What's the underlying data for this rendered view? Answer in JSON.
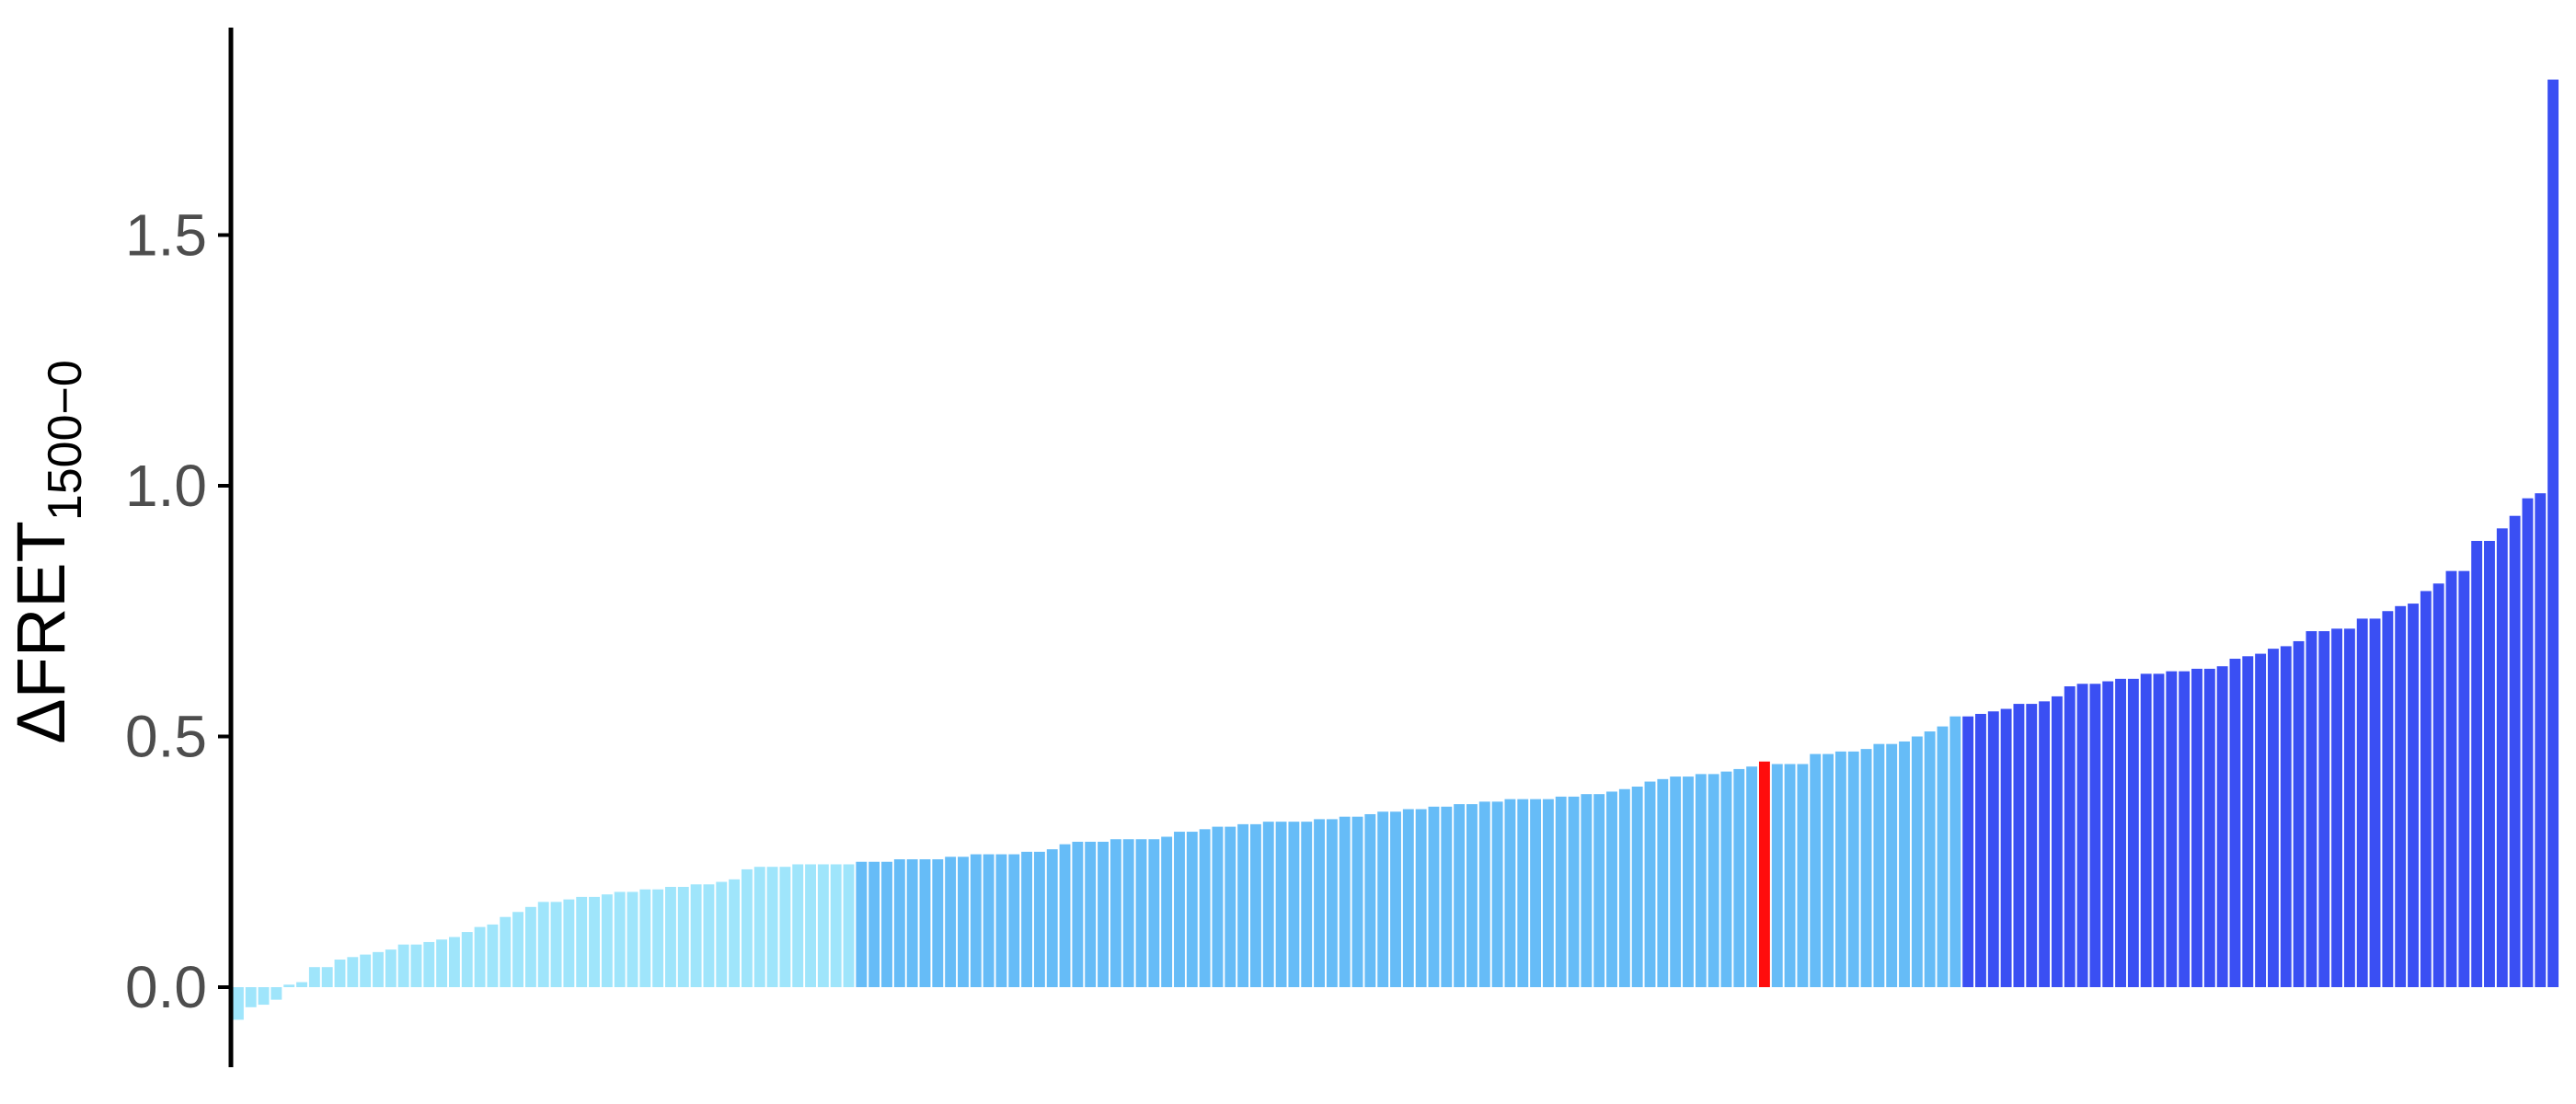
{
  "chart_data": {
    "type": "bar",
    "title": "",
    "xlabel": "",
    "ylabel": "ΔFRET",
    "ylabel_subscript": "1500−0",
    "ylim": [
      -0.16,
      1.9
    ],
    "yticks": [
      0.0,
      0.5,
      1.0,
      1.5
    ],
    "ytick_labels": [
      "0.0",
      "0.5",
      "1.0",
      "1.5"
    ],
    "grid": false,
    "legend": "none",
    "x_axis_line": false,
    "y_axis_line": true,
    "group_colors": {
      "low": "#9fe5fb",
      "mid": "#66bcf7",
      "high": "#3a4ff3",
      "highlight": "#ff0d0d"
    },
    "bar_groups": [
      {
        "group": "low",
        "values": [
          -0.065,
          -0.04,
          -0.035,
          -0.025,
          0.005,
          0.01,
          0.04,
          0.04,
          0.055,
          0.06,
          0.065,
          0.07,
          0.075,
          0.085,
          0.085,
          0.09,
          0.095,
          0.1,
          0.11,
          0.12,
          0.125,
          0.14,
          0.15,
          0.16,
          0.17,
          0.17,
          0.175,
          0.18,
          0.18,
          0.185,
          0.19,
          0.19,
          0.195,
          0.195,
          0.2,
          0.2,
          0.205,
          0.205,
          0.21,
          0.215,
          0.235,
          0.24,
          0.24,
          0.24,
          0.245,
          0.245,
          0.245,
          0.245,
          0.245
        ]
      },
      {
        "group": "mid",
        "values": [
          0.25,
          0.25,
          0.25,
          0.255,
          0.255,
          0.255,
          0.255,
          0.26,
          0.26,
          0.265,
          0.265,
          0.265,
          0.265,
          0.27,
          0.27,
          0.275,
          0.285,
          0.29,
          0.29,
          0.29,
          0.295,
          0.295,
          0.295,
          0.295,
          0.3,
          0.31,
          0.31,
          0.315,
          0.32,
          0.32,
          0.325,
          0.325,
          0.33,
          0.33,
          0.33,
          0.33,
          0.335,
          0.335,
          0.34,
          0.34,
          0.345,
          0.35,
          0.35,
          0.355,
          0.355,
          0.36,
          0.36,
          0.365,
          0.365,
          0.37,
          0.37,
          0.375,
          0.375,
          0.375,
          0.375,
          0.38,
          0.38,
          0.385,
          0.385,
          0.39,
          0.395,
          0.4,
          0.41,
          0.415,
          0.42,
          0.42,
          0.425,
          0.425,
          0.43,
          0.435,
          0.44
        ]
      },
      {
        "group": "highlight",
        "values": [
          0.45
        ]
      },
      {
        "group": "mid",
        "values": [
          0.445,
          0.445,
          0.445,
          0.465,
          0.465,
          0.47,
          0.47,
          0.475,
          0.485,
          0.485,
          0.49,
          0.5,
          0.51,
          0.52,
          0.54
        ]
      },
      {
        "group": "high",
        "values": [
          0.54,
          0.545,
          0.55,
          0.555,
          0.565,
          0.565,
          0.57,
          0.58,
          0.6,
          0.605,
          0.605,
          0.61,
          0.615,
          0.615,
          0.625,
          0.625,
          0.63,
          0.63,
          0.635,
          0.635,
          0.64,
          0.655,
          0.66,
          0.665,
          0.675,
          0.68,
          0.69,
          0.71,
          0.71,
          0.715,
          0.715,
          0.735,
          0.735,
          0.75,
          0.76,
          0.765,
          0.79,
          0.805,
          0.83,
          0.83,
          0.89,
          0.89,
          0.915,
          0.94,
          0.975,
          0.985,
          1.81
        ]
      }
    ]
  }
}
